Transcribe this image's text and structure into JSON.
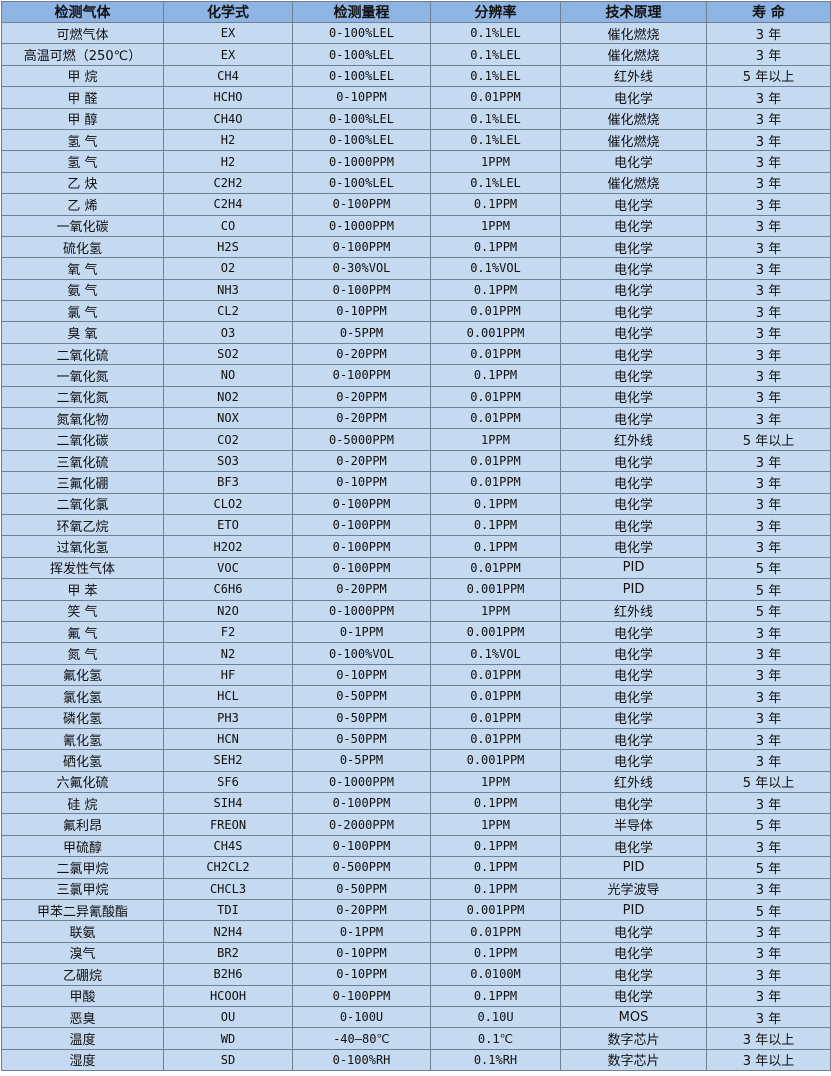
{
  "colors": {
    "header_bg": "#8db4e2",
    "row_bg": "#c5d9f1",
    "border": "#6f7f95"
  },
  "table": {
    "headers": [
      "检测气体",
      "化学式",
      "检测量程",
      "分辨率",
      "技术原理",
      "寿 命"
    ],
    "rows": [
      [
        "可燃气体",
        "EX",
        "0-100%LEL",
        "0.1%LEL",
        "催化燃烧",
        "3 年"
      ],
      [
        "高温可燃（250℃）",
        "EX",
        "0-100%LEL",
        "0.1%LEL",
        "催化燃烧",
        "3 年"
      ],
      [
        "甲 烷",
        "CH4",
        "0-100%LEL",
        "0.1%LEL",
        "红外线",
        "5 年以上"
      ],
      [
        "甲 醛",
        "HCHO",
        "0-10PPM",
        "0.01PPM",
        "电化学",
        "3 年"
      ],
      [
        "甲 醇",
        "CH4O",
        "0-100%LEL",
        "0.1%LEL",
        "催化燃烧",
        "3 年"
      ],
      [
        "氢 气",
        "H2",
        "0-100%LEL",
        "0.1%LEL",
        "催化燃烧",
        "3 年"
      ],
      [
        "氢 气",
        "H2",
        "0-1000PPM",
        "1PPM",
        "电化学",
        "3 年"
      ],
      [
        "乙 炔",
        "C2H2",
        "0-100%LEL",
        "0.1%LEL",
        "催化燃烧",
        "3 年"
      ],
      [
        "乙 烯",
        "C2H4",
        "0-100PPM",
        "0.1PPM",
        "电化学",
        "3 年"
      ],
      [
        "一氧化碳",
        "CO",
        "0-1000PPM",
        "1PPM",
        "电化学",
        "3 年"
      ],
      [
        "硫化氢",
        "H2S",
        "0-100PPM",
        "0.1PPM",
        "电化学",
        "3 年"
      ],
      [
        "氧 气",
        "O2",
        "0-30%VOL",
        "0.1%VOL",
        "电化学",
        "3 年"
      ],
      [
        "氨 气",
        "NH3",
        "0-100PPM",
        "0.1PPM",
        "电化学",
        "3 年"
      ],
      [
        "氯 气",
        "CL2",
        "0-10PPM",
        "0.01PPM",
        "电化学",
        "3 年"
      ],
      [
        "臭 氧",
        "O3",
        "0-5PPM",
        "0.001PPM",
        "电化学",
        "3 年"
      ],
      [
        "二氧化硫",
        "SO2",
        "0-20PPM",
        "0.01PPM",
        "电化学",
        "3 年"
      ],
      [
        "一氧化氮",
        "NO",
        "0-100PPM",
        "0.1PPM",
        "电化学",
        "3 年"
      ],
      [
        "二氧化氮",
        "NO2",
        "0-20PPM",
        "0.01PPM",
        "电化学",
        "3 年"
      ],
      [
        "氮氧化物",
        "NOX",
        "0-20PPM",
        "0.01PPM",
        "电化学",
        "3 年"
      ],
      [
        "二氧化碳",
        "CO2",
        "0-5000PPM",
        "1PPM",
        "红外线",
        "5 年以上"
      ],
      [
        "三氧化硫",
        "SO3",
        "0-20PPM",
        "0.01PPM",
        "电化学",
        "3 年"
      ],
      [
        "三氟化硼",
        "BF3",
        "0-10PPM",
        "0.01PPM",
        "电化学",
        "3 年"
      ],
      [
        "二氧化氯",
        "CLO2",
        "0-100PPM",
        "0.1PPM",
        "电化学",
        "3 年"
      ],
      [
        "环氧乙烷",
        "ETO",
        "0-100PPM",
        "0.1PPM",
        "电化学",
        "3 年"
      ],
      [
        "过氧化氢",
        "H2O2",
        "0-100PPM",
        "0.1PPM",
        "电化学",
        "3 年"
      ],
      [
        "挥发性气体",
        "VOC",
        "0-100PPM",
        "0.01PPM",
        "PID",
        "5 年"
      ],
      [
        "甲 苯",
        "C6H6",
        "0-20PPM",
        "0.001PPM",
        "PID",
        "5 年"
      ],
      [
        "笑 气",
        "N2O",
        "0-1000PPM",
        "1PPM",
        "红外线",
        "5 年"
      ],
      [
        "氟 气",
        "F2",
        "0-1PPM",
        "0.001PPM",
        "电化学",
        "3 年"
      ],
      [
        "氮 气",
        "N2",
        "0-100%VOL",
        "0.1%VOL",
        "电化学",
        "3 年"
      ],
      [
        "氟化氢",
        "HF",
        "0-10PPM",
        "0.01PPM",
        "电化学",
        "3 年"
      ],
      [
        "氯化氢",
        "HCL",
        "0-50PPM",
        "0.01PPM",
        "电化学",
        "3 年"
      ],
      [
        "磷化氢",
        "PH3",
        "0-50PPM",
        "0.01PPM",
        "电化学",
        "3 年"
      ],
      [
        "氰化氢",
        "HCN",
        "0-50PPM",
        "0.01PPM",
        "电化学",
        "3 年"
      ],
      [
        "硒化氢",
        "SEH2",
        "0-5PPM",
        "0.001PPM",
        "电化学",
        "3 年"
      ],
      [
        "六氟化硫",
        "SF6",
        "0-1000PPM",
        "1PPM",
        "红外线",
        "5 年以上"
      ],
      [
        "硅 烷",
        "SIH4",
        "0-100PPM",
        "0.1PPM",
        "电化学",
        "3 年"
      ],
      [
        "氟利昂",
        "FREON",
        "0-2000PPM",
        "1PPM",
        "半导体",
        "5 年"
      ],
      [
        "甲硫醇",
        "CH4S",
        "0-100PPM",
        "0.1PPM",
        "电化学",
        "3 年"
      ],
      [
        "二氯甲烷",
        "CH2CL2",
        "0-500PPM",
        "0.1PPM",
        "PID",
        "5 年"
      ],
      [
        "三氯甲烷",
        "CHCL3",
        "0-50PPM",
        "0.1PPM",
        "光学波导",
        "3 年"
      ],
      [
        "甲苯二异氰酸酯",
        "TDI",
        "0-20PPM",
        "0.001PPM",
        "PID",
        "5 年"
      ],
      [
        "联氨",
        "N2H4",
        "0-1PPM",
        "0.01PPM",
        "电化学",
        "3 年"
      ],
      [
        "溴气",
        "BR2",
        "0-10PPM",
        "0.1PPM",
        "电化学",
        "3 年"
      ],
      [
        "乙硼烷",
        "B2H6",
        "0-10PPM",
        "0.0100M",
        "电化学",
        "3 年"
      ],
      [
        "甲酸",
        "HCOOH",
        "0-100PPM",
        "0.1PPM",
        "电化学",
        "3 年"
      ],
      [
        "恶臭",
        "OU",
        "0-100U",
        "0.10U",
        "MOS",
        "3 年"
      ],
      [
        "温度",
        "WD",
        "-40—80℃",
        "0.1℃",
        "数字芯片",
        "3 年以上"
      ],
      [
        "湿度",
        "SD",
        "0-100%RH",
        "0.1%RH",
        "数字芯片",
        "3 年以上"
      ]
    ]
  }
}
